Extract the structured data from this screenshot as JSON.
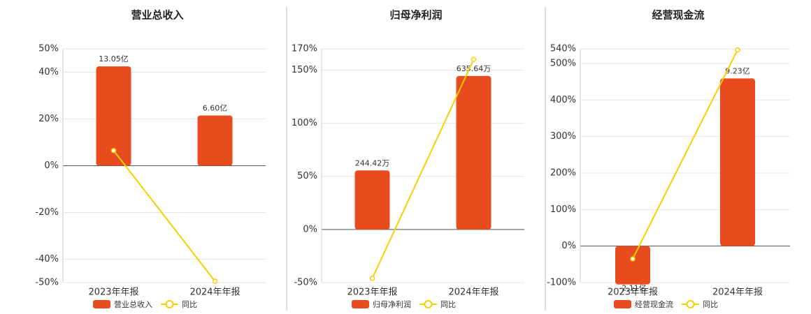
{
  "chart_data": [
    {
      "type": "bar",
      "title": "营业总收入",
      "categories": [
        "2023年年报",
        "2024年年报"
      ],
      "series": [
        {
          "name": "营业总收入",
          "color": "#e84c1e",
          "axis": "y2",
          "values": [
            13.05,
            6.6
          ],
          "value_labels": [
            "13.05亿",
            "6.60亿"
          ]
        },
        {
          "name": "同比",
          "color": "#f5d000",
          "type": "line",
          "values": [
            6.5,
            -49.4
          ]
        }
      ],
      "ylim": [
        -50,
        50
      ],
      "yticks": [
        {
          "value": -50,
          "label": "-50%"
        },
        {
          "value": -40,
          "label": "-40%"
        },
        {
          "value": -20,
          "label": "-20%"
        },
        {
          "value": 0,
          "label": "0%"
        },
        {
          "value": 20,
          "label": "20%"
        },
        {
          "value": 40,
          "label": "40%"
        },
        {
          "value": 50,
          "label": "50%"
        }
      ],
      "grid": true
    },
    {
      "type": "bar",
      "title": "归母净利润",
      "categories": [
        "2023年年报",
        "2024年年报"
      ],
      "series": [
        {
          "name": "归母净利润",
          "color": "#e84c1e",
          "axis": "y2",
          "values": [
            244.42,
            635.64
          ],
          "value_labels": [
            "244.42万",
            "635.64万"
          ]
        },
        {
          "name": "同比",
          "color": "#f5d000",
          "type": "line",
          "values": [
            -46,
            160
          ]
        }
      ],
      "ylim": [
        -50,
        170
      ],
      "yticks": [
        {
          "value": -50,
          "label": "-50%"
        },
        {
          "value": 0,
          "label": "0%"
        },
        {
          "value": 50,
          "label": "50%"
        },
        {
          "value": 100,
          "label": "100%"
        },
        {
          "value": 150,
          "label": "150%"
        },
        {
          "value": 170,
          "label": "170%"
        }
      ],
      "grid": true
    },
    {
      "type": "bar",
      "title": "经营现金流",
      "categories": [
        "2023年年报",
        "2024年年报"
      ],
      "series": [
        {
          "name": "经营现金流",
          "color": "#e84c1e",
          "axis": "y2",
          "values": [
            -2.11,
            9.23
          ],
          "value_labels": [
            "-2.11亿",
            "9.23亿"
          ]
        },
        {
          "name": "同比",
          "color": "#f5d000",
          "type": "line",
          "values": [
            -35,
            537
          ]
        }
      ],
      "ylim": [
        -100,
        540
      ],
      "yticks": [
        {
          "value": -100,
          "label": "-100%"
        },
        {
          "value": 0,
          "label": "0%"
        },
        {
          "value": 100,
          "label": "100%"
        },
        {
          "value": 200,
          "label": "200%"
        },
        {
          "value": 300,
          "label": "300%"
        },
        {
          "value": 400,
          "label": "400%"
        },
        {
          "value": 500,
          "label": "500%"
        },
        {
          "value": 540,
          "label": "540%"
        }
      ],
      "grid": true
    }
  ]
}
